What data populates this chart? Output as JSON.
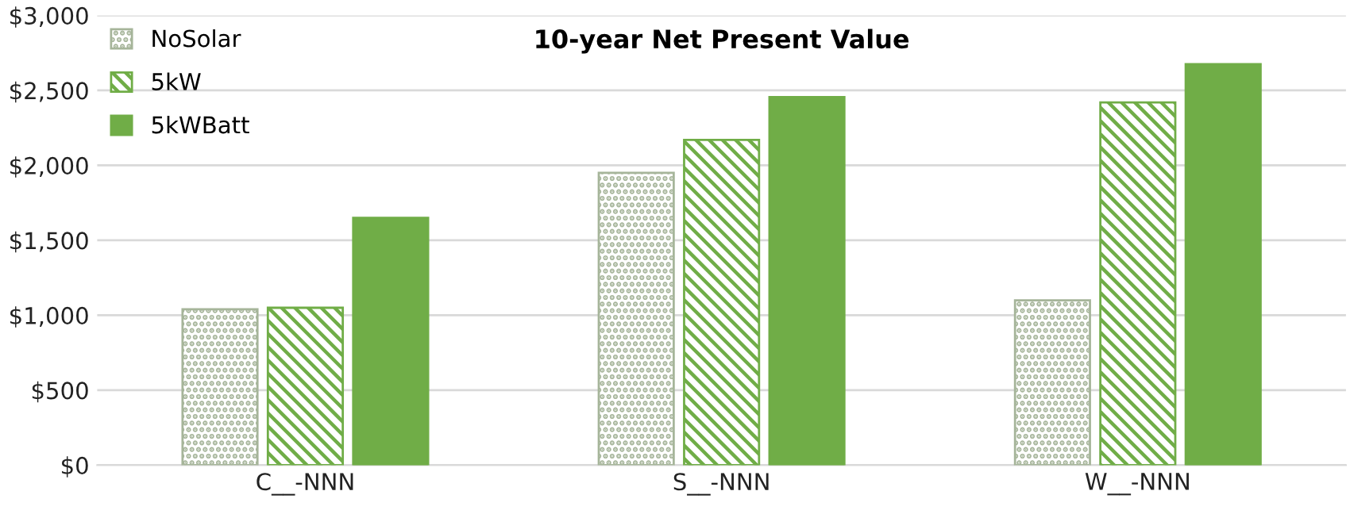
{
  "chart_data": {
    "type": "bar",
    "title": "10-year Net Present Value",
    "categories": [
      "C__-NNN",
      "S__-NNN",
      "W__-NNN"
    ],
    "series": [
      {
        "name": "NoSolar",
        "color": "#a6b59a",
        "values": [
          1040,
          1950,
          1100
        ]
      },
      {
        "name": "5kW",
        "color": "#70ad47",
        "values": [
          1050,
          2170,
          2420
        ]
      },
      {
        "name": "5kWBatt",
        "color": "#70ad47",
        "values": [
          1650,
          2455,
          2675
        ]
      }
    ],
    "ylim": [
      0,
      3000
    ],
    "yticks": [
      {
        "value": 0,
        "label": "$0"
      },
      {
        "value": 500,
        "label": "$500"
      },
      {
        "value": 1000,
        "label": "$1,000"
      },
      {
        "value": 1500,
        "label": "$1,500"
      },
      {
        "value": 2000,
        "label": "$2,000"
      },
      {
        "value": 2500,
        "label": "$2,500"
      },
      {
        "value": 3000,
        "label": "$3,000"
      }
    ],
    "grid": "y",
    "legend": "top left"
  }
}
